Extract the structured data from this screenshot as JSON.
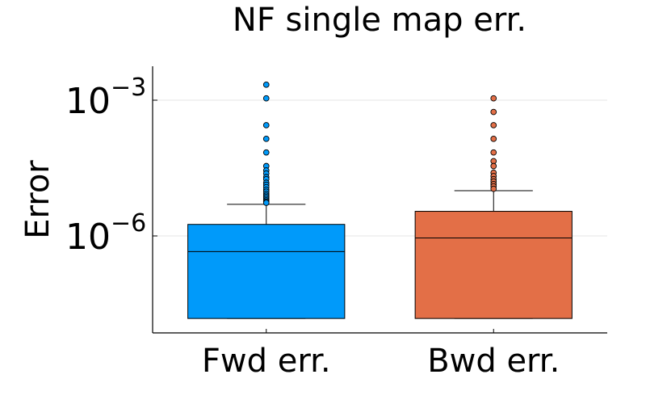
{
  "chart_data": {
    "type": "box",
    "title": "NF single map err.",
    "xlabel": "",
    "ylabel": "Error",
    "yscale": "log10",
    "ylim": [
      1e-08,
      0.003
    ],
    "categories": [
      "Fwd err.",
      "Bwd err."
    ],
    "yticks": [
      {
        "value": 0.001,
        "base": "10",
        "exp": "−3"
      },
      {
        "value": 1e-06,
        "base": "10",
        "exp": "−6"
      }
    ],
    "grid": true,
    "legend": "none",
    "series": [
      {
        "category": "Fwd err.",
        "color": "#009AFA",
        "min": 1.5e-08,
        "q1": 1.5e-08,
        "median": 4.5e-07,
        "q3": 1.8e-06,
        "whisker_high": 5e-06,
        "outliers": [
          0.0022,
          0.0011,
          0.00028,
          0.00014,
          7e-05,
          3.5e-05,
          2.8e-05,
          2.4e-05,
          2e-05,
          1.8e-05,
          1.5e-05,
          1.35e-05,
          1.2e-05,
          1.05e-05,
          9.5e-06,
          8.5e-06,
          7.8e-06,
          7.2e-06,
          6.6e-06,
          6.1e-06,
          5.7e-06,
          5.4e-06
        ]
      },
      {
        "category": "Bwd err.",
        "color": "#E36F47",
        "min": 1.5e-08,
        "q1": 1.5e-08,
        "median": 9e-07,
        "q3": 3.5e-06,
        "whisker_high": 1e-05,
        "outliers": [
          0.0011,
          0.00055,
          0.00028,
          0.00014,
          7e-05,
          4.5e-05,
          3.5e-05,
          2.5e-05,
          2.1e-05,
          1.8e-05,
          1.6e-05,
          1.4e-05,
          1.25e-05,
          1.1e-05
        ]
      }
    ]
  }
}
